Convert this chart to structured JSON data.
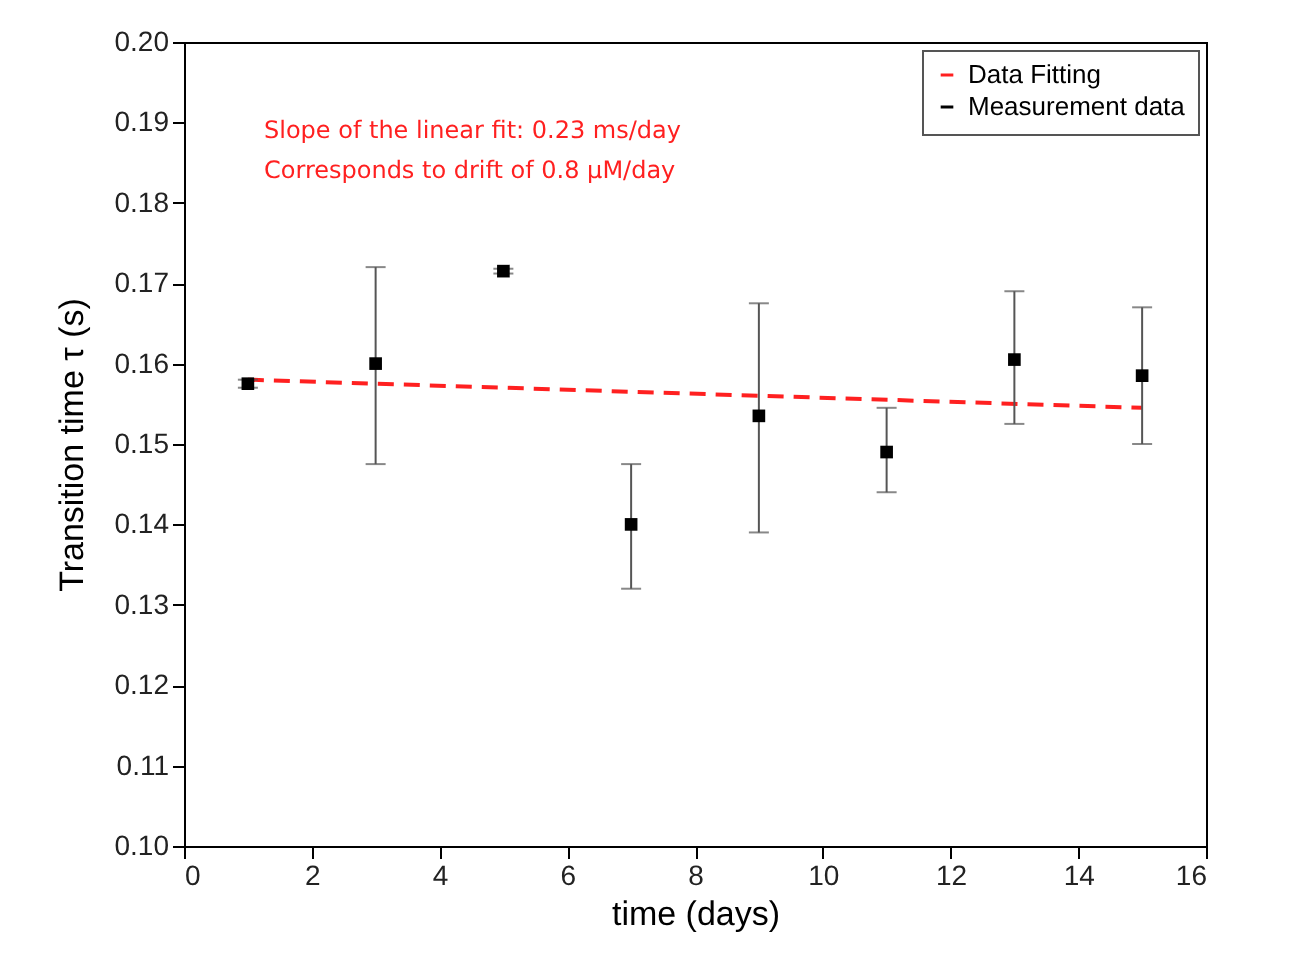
{
  "chart_data": {
    "type": "scatter",
    "xlabel": "time (days)",
    "ylabel": "Transition time τ (s)",
    "annotations": [
      "Slope of the linear fit: 0.23 ms/day",
      "Corresponds to drift of 0.8 µM/day"
    ],
    "xlim": [
      0,
      16
    ],
    "xticks": [
      0,
      2,
      4,
      6,
      8,
      10,
      12,
      14,
      16
    ],
    "ylim": [
      0.1,
      0.2
    ],
    "yticks": [
      {
        "value": 0.1,
        "label": "0.10"
      },
      0.11,
      0.12,
      0.13,
      0.14,
      0.15,
      0.16,
      0.17,
      0.18,
      0.19,
      {
        "value": 0.2,
        "label": "0.20"
      }
    ],
    "grid": false,
    "legend": "top right",
    "series": [
      {
        "name": "Data Fitting",
        "type": "line",
        "color": "#ff2020",
        "line_style": "dashed",
        "x": [
          1,
          15
        ],
        "values": [
          0.158,
          0.1545
        ]
      },
      {
        "name": "Measurement data",
        "marker": "square",
        "color": "#000000",
        "x": [
          1,
          3,
          5,
          7,
          9,
          11,
          13,
          15
        ],
        "values": [
          0.1575,
          0.16,
          0.1715,
          0.14,
          0.1535,
          0.149,
          0.1605,
          0.1585
        ],
        "errors": [
          0.0005,
          [
            0.1475,
            0.172
          ],
          0.0003,
          [
            0.132,
            0.1475
          ],
          [
            0.139,
            0.1675
          ],
          [
            0.144,
            0.1545
          ],
          [
            0.1525,
            0.169
          ],
          [
            0.15,
            0.167
          ]
        ]
      }
    ]
  }
}
